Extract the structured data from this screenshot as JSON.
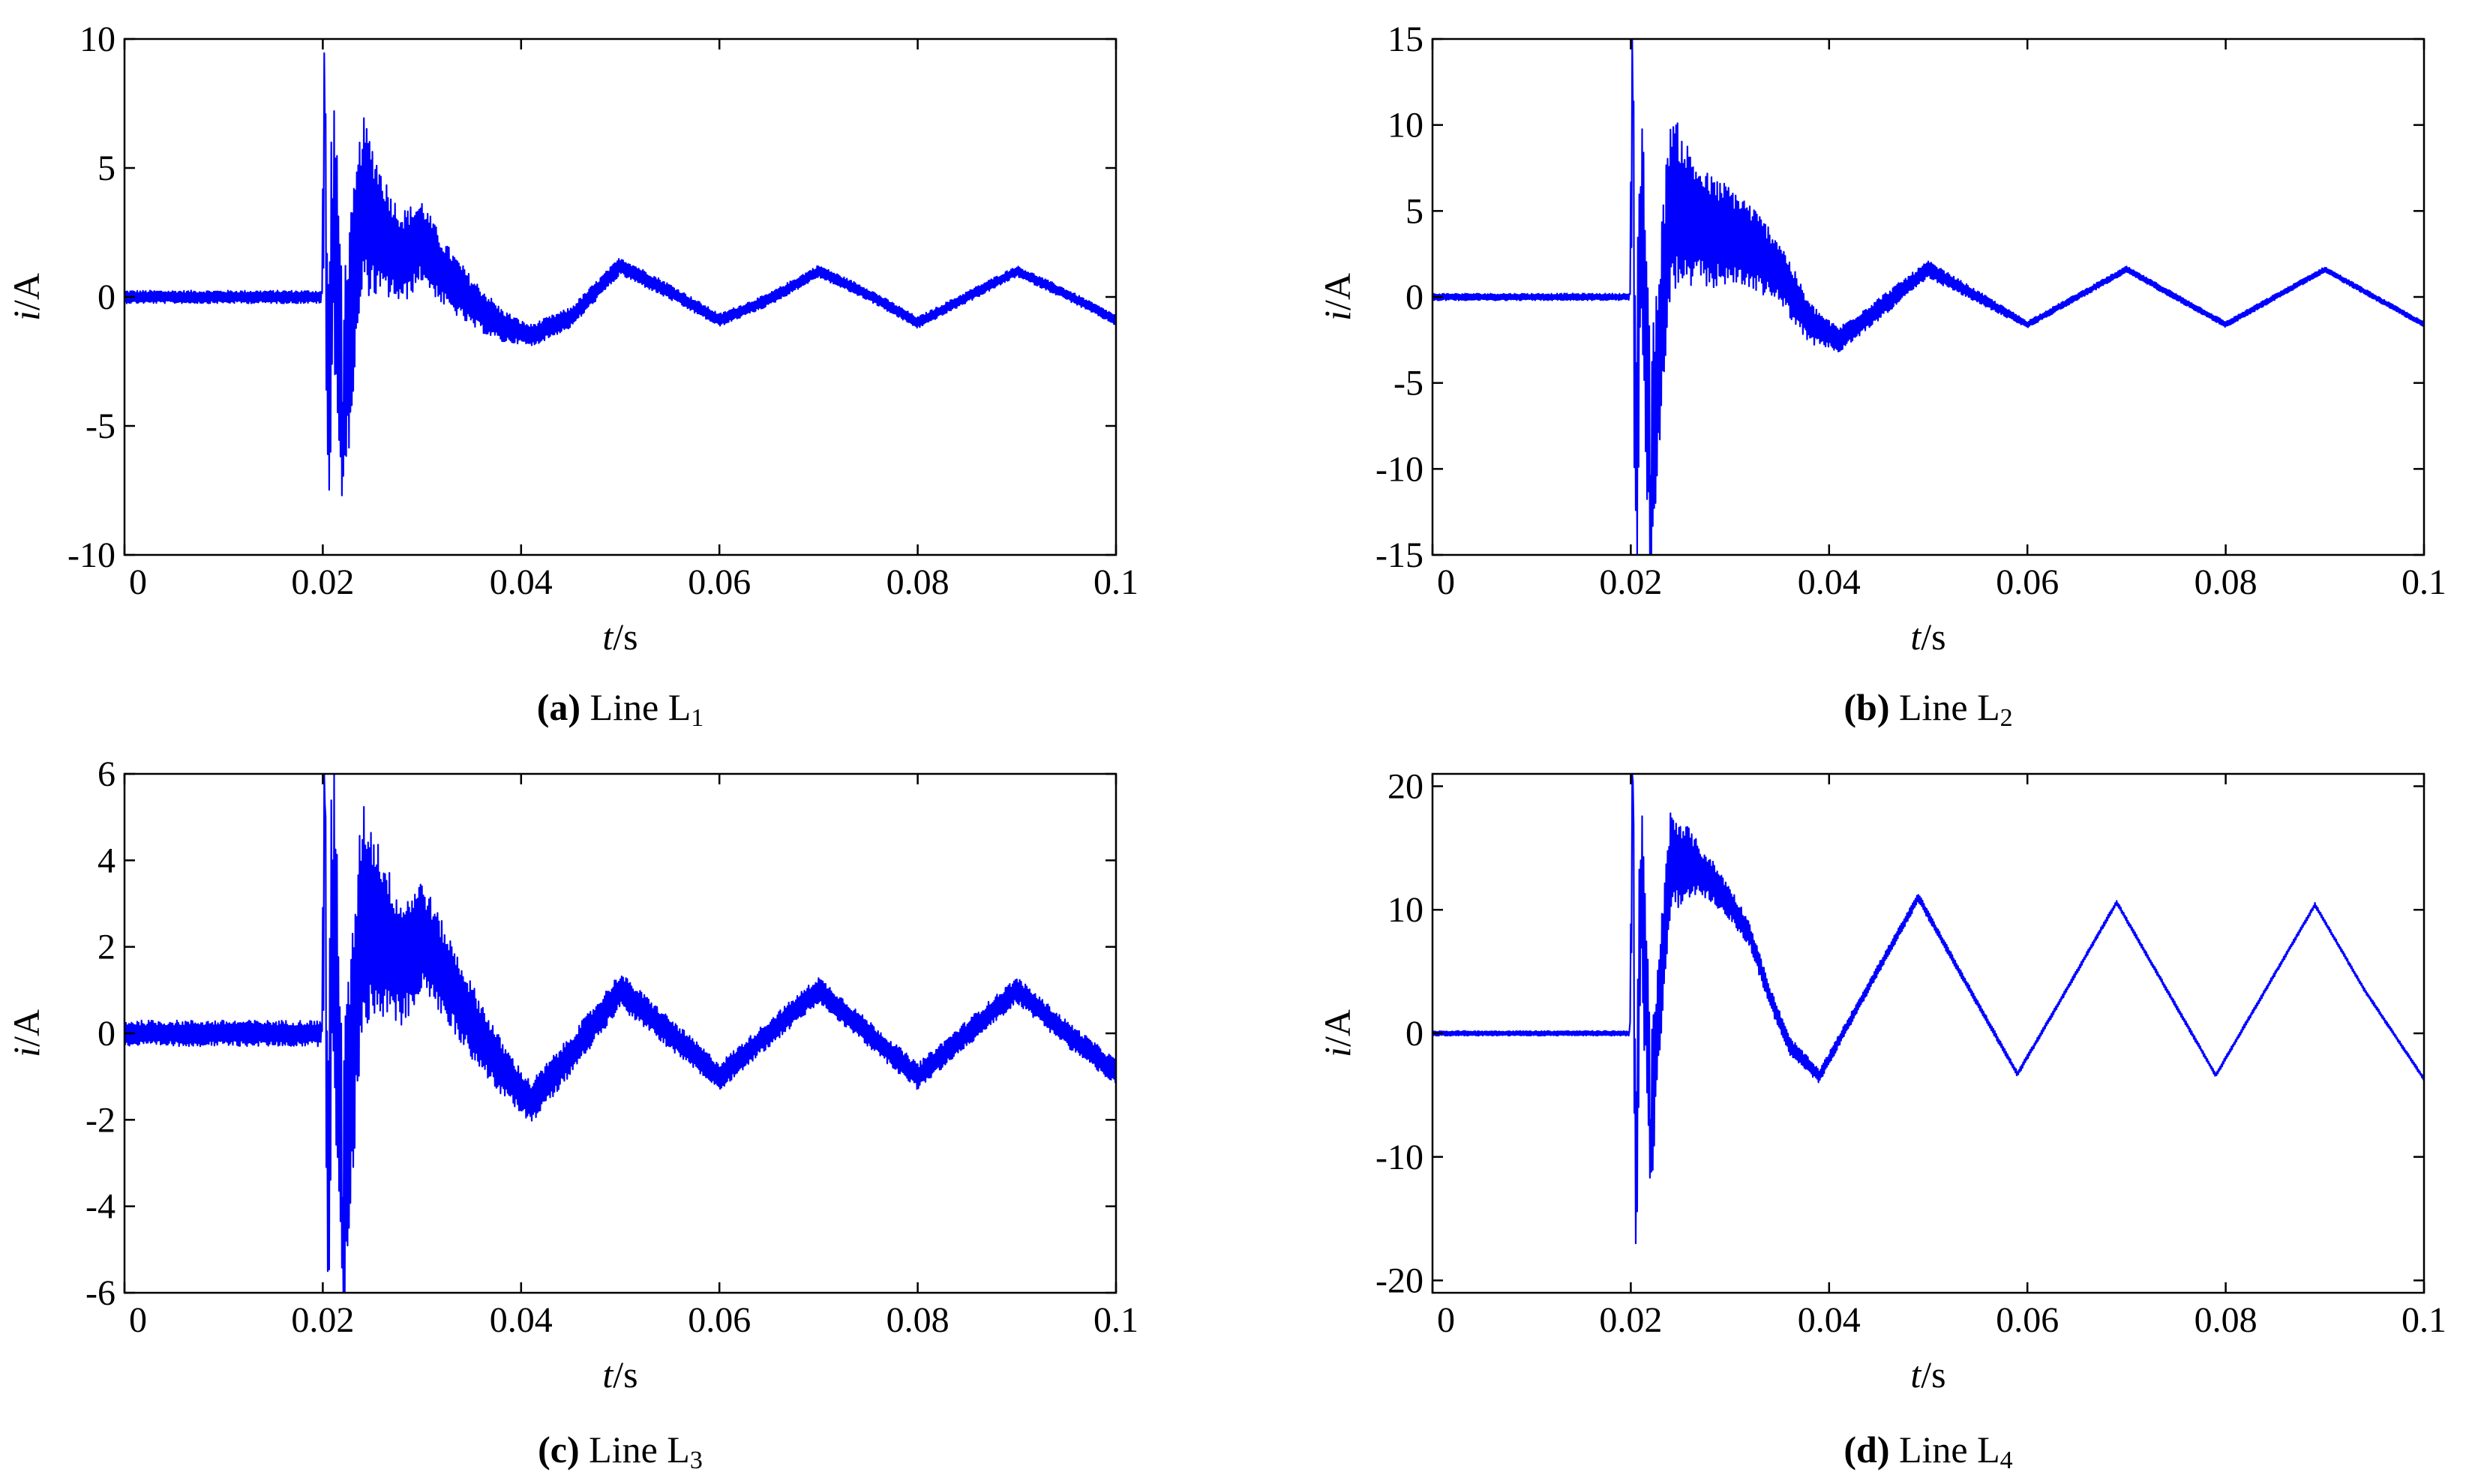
{
  "figure": {
    "trace_color": "#0000ff",
    "axis_color": "#000000"
  },
  "chart_data": [
    {
      "type": "line",
      "panel": "a",
      "caption_letter": "(a)",
      "caption_text": " Line L",
      "caption_sub": "1",
      "ylabel_italic": "i",
      "ylabel_unit": "/A",
      "xlabel_italic": "t",
      "xlabel_unit": "/s",
      "xlim": [
        0,
        0.1
      ],
      "ylim": [
        -10,
        10
      ],
      "xticks": [
        0,
        0.02,
        0.04,
        0.06,
        0.08,
        0.1
      ],
      "xtick_labels": [
        "0",
        "0.02",
        "0.04",
        "0.06",
        "0.08",
        "0.1"
      ],
      "yticks": [
        10,
        5,
        0,
        -5,
        -10
      ],
      "ytick_labels": [
        "10",
        "5",
        "0",
        "-5",
        "-10"
      ],
      "grid": false,
      "series": [
        {
          "x": [
            0,
            0.01,
            0.0199,
            0.0202,
            0.0205,
            0.021,
            0.022,
            0.024,
            0.026,
            0.028,
            0.03,
            0.032,
            0.035,
            0.038,
            0.041,
            0.045,
            0.05,
            0.055,
            0.06,
            0.065,
            0.07,
            0.075,
            0.08,
            0.085,
            0.09,
            0.095,
            0.1
          ],
          "y": [
            0,
            0,
            0,
            6.6,
            -6.1,
            3.8,
            -4.1,
            3.6,
            2.4,
            1.5,
            2.2,
            1.0,
            -0.2,
            -1.1,
            -1.5,
            -0.8,
            1.2,
            0.2,
            -0.9,
            -0.1,
            1.0,
            0.1,
            -1.0,
            0.0,
            1.0,
            0.1,
            -0.9
          ],
          "envelope": [
            {
              "x": 0,
              "v": 0.25
            },
            {
              "x": 0.0199,
              "v": 0.25
            },
            {
              "x": 0.0202,
              "v": 6.0
            },
            {
              "x": 0.023,
              "v": 4.0
            },
            {
              "x": 0.027,
              "v": 2.0
            },
            {
              "x": 0.032,
              "v": 1.3
            },
            {
              "x": 0.04,
              "v": 0.45
            },
            {
              "x": 0.06,
              "v": 0.25
            },
            {
              "x": 0.1,
              "v": 0.2
            }
          ]
        }
      ]
    },
    {
      "type": "line",
      "panel": "b",
      "caption_letter": "(b)",
      "caption_text": " Line L",
      "caption_sub": "2",
      "ylabel_italic": "i",
      "ylabel_unit": "/A",
      "xlabel_italic": "t",
      "xlabel_unit": "/s",
      "xlim": [
        0,
        0.1
      ],
      "ylim": [
        -15,
        15
      ],
      "xticks": [
        0,
        0.02,
        0.04,
        0.06,
        0.08,
        0.1
      ],
      "xtick_labels": [
        "0",
        "0.02",
        "0.04",
        "0.06",
        "0.08",
        "0.1"
      ],
      "yticks": [
        15,
        10,
        5,
        0,
        -5,
        -10,
        -15
      ],
      "ytick_labels": [
        "15",
        "10",
        "5",
        "0",
        "-5",
        "-10",
        "-15"
      ],
      "grid": false,
      "series": [
        {
          "x": [
            0,
            0.01,
            0.0199,
            0.0202,
            0.0205,
            0.021,
            0.022,
            0.024,
            0.026,
            0.028,
            0.03,
            0.032,
            0.035,
            0.038,
            0.041,
            0.045,
            0.05,
            0.055,
            0.06,
            0.065,
            0.07,
            0.075,
            0.08,
            0.085,
            0.09,
            0.095,
            0.1
          ],
          "y": [
            0,
            0,
            0,
            10.9,
            -12.4,
            6.4,
            -10.4,
            5.6,
            4.5,
            3.8,
            3.6,
            3.0,
            1.5,
            -1.5,
            -2.5,
            -0.7,
            1.6,
            0.0,
            -1.6,
            0.0,
            1.6,
            0.0,
            -1.6,
            0.0,
            1.6,
            0.0,
            -1.6
          ],
          "envelope": [
            {
              "x": 0,
              "v": 0.2
            },
            {
              "x": 0.0199,
              "v": 0.2
            },
            {
              "x": 0.0202,
              "v": 9.0
            },
            {
              "x": 0.023,
              "v": 6.0
            },
            {
              "x": 0.027,
              "v": 3.5
            },
            {
              "x": 0.032,
              "v": 2.5
            },
            {
              "x": 0.04,
              "v": 0.8
            },
            {
              "x": 0.06,
              "v": 0.2
            },
            {
              "x": 0.1,
              "v": 0.15
            }
          ]
        }
      ]
    },
    {
      "type": "line",
      "panel": "c",
      "caption_letter": "(c)",
      "caption_text": " Line L",
      "caption_sub": "3",
      "ylabel_italic": "i",
      "ylabel_unit": "/A",
      "xlabel_italic": "t",
      "xlabel_unit": "/s",
      "xlim": [
        0,
        0.1
      ],
      "ylim": [
        -6,
        6
      ],
      "xticks": [
        0,
        0.02,
        0.04,
        0.06,
        0.08,
        0.1
      ],
      "xtick_labels": [
        "0",
        "0.02",
        "0.04",
        "0.06",
        "0.08",
        "0.1"
      ],
      "yticks": [
        6,
        4,
        2,
        0,
        -2,
        -4,
        -6
      ],
      "ytick_labels": [
        "6",
        "4",
        "2",
        "0",
        "-2",
        "-4",
        "-6"
      ],
      "grid": false,
      "series": [
        {
          "x": [
            0,
            0.01,
            0.0199,
            0.0202,
            0.0205,
            0.021,
            0.022,
            0.024,
            0.026,
            0.028,
            0.03,
            0.032,
            0.035,
            0.038,
            0.041,
            0.045,
            0.05,
            0.055,
            0.06,
            0.065,
            0.07,
            0.075,
            0.08,
            0.085,
            0.09,
            0.095,
            0.1
          ],
          "y": [
            0,
            0,
            0,
            5.3,
            -5.5,
            4.0,
            -3.8,
            2.8,
            2.3,
            1.6,
            2.3,
            1.5,
            0.3,
            -0.8,
            -1.6,
            -0.5,
            1.0,
            0.0,
            -1.0,
            0.0,
            1.0,
            0.0,
            -1.0,
            0.0,
            1.0,
            0.0,
            -0.9
          ],
          "envelope": [
            {
              "x": 0,
              "v": 0.3
            },
            {
              "x": 0.0199,
              "v": 0.3
            },
            {
              "x": 0.0202,
              "v": 4.5
            },
            {
              "x": 0.023,
              "v": 3.0
            },
            {
              "x": 0.027,
              "v": 1.6
            },
            {
              "x": 0.032,
              "v": 1.1
            },
            {
              "x": 0.04,
              "v": 0.5
            },
            {
              "x": 0.06,
              "v": 0.32
            },
            {
              "x": 0.1,
              "v": 0.3
            }
          ]
        }
      ]
    },
    {
      "type": "line",
      "panel": "d",
      "caption_letter": "(d)",
      "caption_text": " Line L",
      "caption_sub": "4",
      "ylabel_italic": "i",
      "ylabel_unit": "/A",
      "xlabel_italic": "t",
      "xlabel_unit": "/s",
      "xlim": [
        0,
        0.1
      ],
      "ylim": [
        -21,
        21
      ],
      "xticks": [
        0,
        0.02,
        0.04,
        0.06,
        0.08,
        0.1
      ],
      "xtick_labels": [
        "0",
        "0.02",
        "0.04",
        "0.06",
        "0.08",
        "0.1"
      ],
      "yticks": [
        20,
        10,
        0,
        -10,
        -20
      ],
      "ytick_labels": [
        "20",
        "10",
        "0",
        "-10",
        "-20"
      ],
      "grid": false,
      "series": [
        {
          "x": [
            0,
            0.01,
            0.0199,
            0.0202,
            0.0205,
            0.021,
            0.022,
            0.024,
            0.026,
            0.028,
            0.03,
            0.032,
            0.034,
            0.036,
            0.039,
            0.044,
            0.049,
            0.054,
            0.059,
            0.064,
            0.069,
            0.074,
            0.079,
            0.084,
            0.089,
            0.094,
            0.1
          ],
          "y": [
            0,
            0,
            0,
            20.4,
            -17.0,
            14.0,
            -7.0,
            13.9,
            13.8,
            12.5,
            10.5,
            8.0,
            3.0,
            -1.0,
            -3.5,
            3.8,
            11.0,
            3.8,
            -3.3,
            3.6,
            10.6,
            3.6,
            -3.4,
            3.5,
            10.4,
            3.5,
            -3.7
          ],
          "envelope": [
            {
              "x": 0,
              "v": 0.2
            },
            {
              "x": 0.0199,
              "v": 0.2
            },
            {
              "x": 0.0202,
              "v": 10.0
            },
            {
              "x": 0.023,
              "v": 5.0
            },
            {
              "x": 0.027,
              "v": 2.0
            },
            {
              "x": 0.032,
              "v": 1.0
            },
            {
              "x": 0.04,
              "v": 0.5
            },
            {
              "x": 0.06,
              "v": 0.2
            },
            {
              "x": 0.1,
              "v": 0.15
            }
          ]
        }
      ]
    }
  ]
}
